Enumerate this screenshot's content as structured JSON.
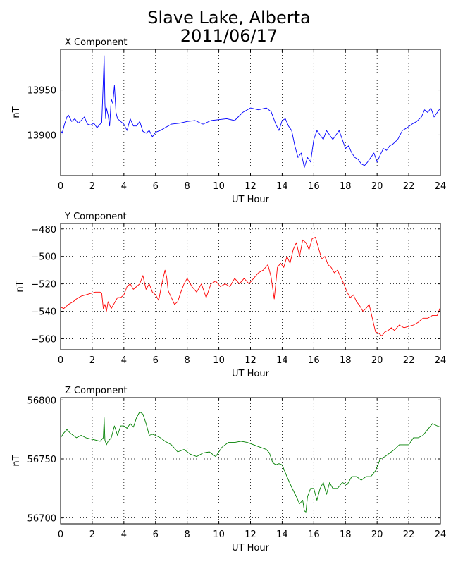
{
  "title_line1": "Slave Lake, Alberta",
  "title_line2": "2011/06/17",
  "chart_data": [
    {
      "type": "line",
      "title": "X Component",
      "xlabel": "UT Hour",
      "ylabel": "nT",
      "color": "#0000ff",
      "xlim": [
        0,
        24
      ],
      "ylim": [
        13855,
        13995
      ],
      "xticks": [
        0,
        2,
        4,
        6,
        8,
        10,
        12,
        14,
        16,
        18,
        20,
        22,
        24
      ],
      "yticks": [
        13900,
        13950
      ],
      "grid": true,
      "series": [
        {
          "x": [
            0,
            0.1,
            0.25,
            0.4,
            0.5,
            0.7,
            0.9,
            1.1,
            1.3,
            1.5,
            1.7,
            1.9,
            2.1,
            2.3,
            2.5,
            2.6,
            2.7,
            2.75,
            2.8,
            2.85,
            2.9,
            3.0,
            3.1,
            3.2,
            3.3,
            3.4,
            3.45,
            3.5,
            3.6,
            3.8,
            4.0,
            4.2,
            4.4,
            4.6,
            4.8,
            5.0,
            5.2,
            5.4,
            5.6,
            5.8,
            6.0,
            6.3,
            6.6,
            7.0,
            7.5,
            8.0,
            8.5,
            9.0,
            9.5,
            10.0,
            10.5,
            11.0,
            11.5,
            12.0,
            12.5,
            13.0,
            13.3,
            13.6,
            13.8,
            14.0,
            14.2,
            14.4,
            14.6,
            14.8,
            15.0,
            15.2,
            15.4,
            15.6,
            15.8,
            16.0,
            16.2,
            16.4,
            16.6,
            16.8,
            17.0,
            17.2,
            17.4,
            17.6,
            17.8,
            18.0,
            18.2,
            18.4,
            18.6,
            18.8,
            19.0,
            19.2,
            19.4,
            19.6,
            19.8,
            20.0,
            20.2,
            20.4,
            20.6,
            20.8,
            21.0,
            21.3,
            21.6,
            21.9,
            22.2,
            22.5,
            22.8,
            23.0,
            23.2,
            23.4,
            23.6,
            23.8,
            24.0
          ],
          "y": [
            13905,
            13902,
            13912,
            13920,
            13922,
            13915,
            13918,
            13913,
            13916,
            13920,
            13912,
            13911,
            13913,
            13908,
            13912,
            13914,
            13960,
            13988,
            13935,
            13918,
            13930,
            13922,
            13910,
            13940,
            13935,
            13955,
            13940,
            13925,
            13918,
            13915,
            13912,
            13905,
            13918,
            13910,
            13910,
            13915,
            13904,
            13902,
            13905,
            13898,
            13903,
            13905,
            13908,
            13912,
            13913,
            13915,
            13916,
            13912,
            13916,
            13917,
            13918,
            13916,
            13925,
            13930,
            13928,
            13930,
            13926,
            13912,
            13905,
            13916,
            13918,
            13910,
            13905,
            13888,
            13875,
            13880,
            13864,
            13875,
            13870,
            13895,
            13905,
            13900,
            13895,
            13905,
            13900,
            13895,
            13900,
            13905,
            13895,
            13885,
            13888,
            13880,
            13875,
            13873,
            13868,
            13866,
            13870,
            13875,
            13880,
            13870,
            13878,
            13885,
            13883,
            13888,
            13890,
            13895,
            13905,
            13908,
            13912,
            13915,
            13920,
            13928,
            13925,
            13930,
            13920,
            13925,
            13930
          ]
        }
      ]
    },
    {
      "type": "line",
      "title": "Y Component",
      "xlabel": "UT Hour",
      "ylabel": "nT",
      "color": "#ff0000",
      "xlim": [
        0,
        24
      ],
      "ylim": [
        -568,
        -476
      ],
      "xticks": [
        0,
        2,
        4,
        6,
        8,
        10,
        12,
        14,
        16,
        18,
        20,
        22,
        24
      ],
      "yticks": [
        -480,
        -500,
        -520,
        -540,
        -560
      ],
      "grid": true,
      "series": [
        {
          "x": [
            0,
            0.2,
            0.5,
            0.8,
            1.0,
            1.3,
            1.6,
            1.9,
            2.2,
            2.5,
            2.6,
            2.7,
            2.8,
            2.9,
            3.0,
            3.2,
            3.4,
            3.6,
            3.8,
            4.0,
            4.2,
            4.4,
            4.6,
            4.8,
            5.0,
            5.2,
            5.4,
            5.6,
            5.8,
            6.0,
            6.2,
            6.4,
            6.6,
            6.7,
            6.8,
            7.0,
            7.2,
            7.4,
            7.6,
            7.8,
            8.0,
            8.3,
            8.6,
            8.9,
            9.2,
            9.5,
            9.8,
            10.1,
            10.4,
            10.7,
            11.0,
            11.3,
            11.6,
            11.9,
            12.2,
            12.5,
            12.8,
            13.1,
            13.3,
            13.5,
            13.7,
            13.9,
            14.1,
            14.3,
            14.5,
            14.7,
            14.9,
            15.1,
            15.3,
            15.5,
            15.7,
            15.9,
            16.1,
            16.3,
            16.5,
            16.7,
            16.9,
            17.1,
            17.3,
            17.5,
            17.7,
            17.9,
            18.1,
            18.3,
            18.5,
            18.7,
            18.9,
            19.1,
            19.3,
            19.5,
            19.7,
            19.9,
            20.1,
            20.3,
            20.5,
            20.7,
            20.9,
            21.1,
            21.4,
            21.7,
            22.0,
            22.3,
            22.6,
            22.9,
            23.2,
            23.5,
            23.8,
            24.0
          ],
          "y": [
            -537,
            -538,
            -535,
            -533,
            -531,
            -529,
            -528,
            -527,
            -526,
            -526,
            -527,
            -538,
            -535,
            -540,
            -533,
            -538,
            -534,
            -530,
            -530,
            -528,
            -522,
            -520,
            -524,
            -522,
            -520,
            -514,
            -524,
            -520,
            -526,
            -528,
            -532,
            -520,
            -510,
            -515,
            -525,
            -530,
            -535,
            -533,
            -526,
            -520,
            -516,
            -522,
            -526,
            -520,
            -530,
            -520,
            -518,
            -522,
            -520,
            -522,
            -516,
            -520,
            -516,
            -520,
            -516,
            -512,
            -510,
            -506,
            -515,
            -531,
            -508,
            -505,
            -508,
            -500,
            -505,
            -495,
            -490,
            -500,
            -488,
            -490,
            -495,
            -487,
            -486,
            -494,
            -502,
            -500,
            -506,
            -508,
            -512,
            -510,
            -515,
            -520,
            -526,
            -530,
            -528,
            -533,
            -536,
            -540,
            -538,
            -535,
            -545,
            -555,
            -556,
            -558,
            -555,
            -554,
            -552,
            -554,
            -550,
            -552,
            -551,
            -550,
            -548,
            -545,
            -545,
            -543,
            -543,
            -537
          ]
        }
      ]
    },
    {
      "type": "line",
      "title": "Z Component",
      "xlabel": "UT Hour",
      "ylabel": "nT",
      "color": "#008000",
      "xlim": [
        0,
        24
      ],
      "ylim": [
        56695,
        56802
      ],
      "xticks": [
        0,
        2,
        4,
        6,
        8,
        10,
        12,
        14,
        16,
        18,
        20,
        22,
        24
      ],
      "yticks": [
        56700,
        56750,
        56800
      ],
      "grid": true,
      "series": [
        {
          "x": [
            0,
            0.2,
            0.4,
            0.6,
            0.8,
            1.0,
            1.3,
            1.6,
            1.9,
            2.2,
            2.5,
            2.7,
            2.75,
            2.8,
            2.9,
            3.0,
            3.2,
            3.4,
            3.6,
            3.8,
            4.0,
            4.2,
            4.4,
            4.6,
            4.8,
            5.0,
            5.2,
            5.4,
            5.6,
            5.8,
            6.0,
            6.3,
            6.6,
            7.0,
            7.4,
            7.8,
            8.2,
            8.6,
            9.0,
            9.4,
            9.8,
            10.2,
            10.6,
            11.0,
            11.4,
            11.8,
            12.2,
            12.6,
            13.0,
            13.2,
            13.4,
            13.6,
            13.8,
            14.0,
            14.3,
            14.6,
            14.9,
            15.1,
            15.3,
            15.4,
            15.5,
            15.6,
            15.8,
            16.0,
            16.2,
            16.4,
            16.6,
            16.8,
            17.0,
            17.2,
            17.5,
            17.8,
            18.1,
            18.4,
            18.7,
            19.0,
            19.3,
            19.6,
            19.9,
            20.2,
            20.5,
            20.8,
            21.1,
            21.4,
            21.7,
            22.0,
            22.3,
            22.6,
            22.9,
            23.2,
            23.5,
            23.8,
            24.0
          ],
          "y": [
            56768,
            56772,
            56775,
            56772,
            56770,
            56768,
            56770,
            56768,
            56767,
            56766,
            56765,
            56768,
            56785,
            56766,
            56762,
            56765,
            56768,
            56778,
            56770,
            56778,
            56778,
            56776,
            56780,
            56777,
            56785,
            56790,
            56788,
            56780,
            56770,
            56771,
            56770,
            56768,
            56765,
            56762,
            56756,
            56758,
            56754,
            56752,
            56755,
            56756,
            56752,
            56760,
            56764,
            56764,
            56765,
            56764,
            56762,
            56760,
            56758,
            56755,
            56747,
            56745,
            56746,
            56745,
            56735,
            56726,
            56718,
            56712,
            56715,
            56706,
            56705,
            56718,
            56725,
            56725,
            56715,
            56725,
            56730,
            56720,
            56730,
            56725,
            56725,
            56730,
            56728,
            56735,
            56735,
            56732,
            56735,
            56735,
            56740,
            56750,
            56752,
            56755,
            56758,
            56762,
            56762,
            56762,
            56768,
            56768,
            56770,
            56775,
            56780,
            56778,
            56777
          ]
        }
      ]
    }
  ]
}
